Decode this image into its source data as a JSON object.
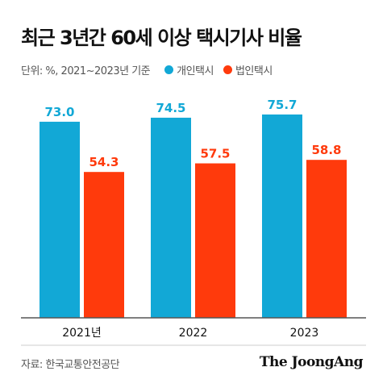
{
  "title": "최근 3년간 60세 이상 택시기사 비율",
  "unit_note": "단위: %, 2021~2023년 기준",
  "source": "자료: 한국교통안전공단",
  "brand": "The JoongAng",
  "colors": {
    "개인택시": "#12A8D6",
    "법인택시": "#FF3A0C",
    "axis": "#555555"
  },
  "chart_data": {
    "type": "bar",
    "title": "최근 3년간 60세 이상 택시기사 비율",
    "categories": [
      "2021년",
      "2022",
      "2023"
    ],
    "series": [
      {
        "name": "개인택시",
        "values": [
          73.0,
          74.5,
          75.7
        ]
      },
      {
        "name": "법인택시",
        "values": [
          54.3,
          57.5,
          58.8
        ]
      }
    ],
    "value_labels": [
      [
        "73.0",
        "74.5",
        "75.7"
      ],
      [
        "54.3",
        "57.5",
        "58.8"
      ]
    ],
    "xlabel": "",
    "ylabel": "",
    "ylim": [
      0,
      100
    ],
    "grid": false,
    "legend": "top-left"
  }
}
